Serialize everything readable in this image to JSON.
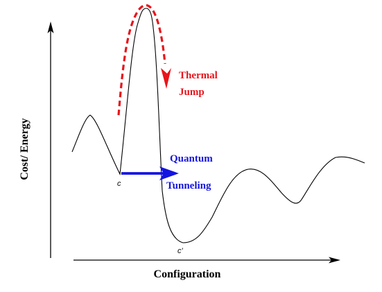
{
  "axes": {
    "x_label": "Configuration",
    "y_label": "Cost/ Energy"
  },
  "annotations": {
    "thermal_line1": "Thermal",
    "thermal_line2": "Jump",
    "quantum_line1": "Quantum",
    "quantum_line2": "Tunneling"
  },
  "points": {
    "local_min": "c",
    "global_min": "c'"
  },
  "colors": {
    "curve": "#000000",
    "thermal": "#e8141b",
    "quantum": "#1414e0",
    "axes": "#000000"
  }
}
